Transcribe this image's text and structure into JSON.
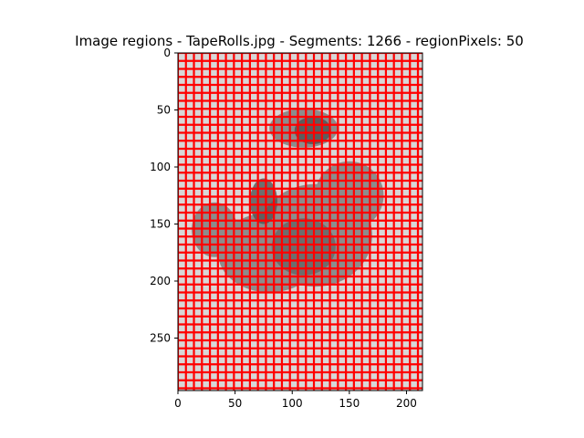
{
  "chart_data": {
    "type": "heatmap",
    "title": "Image regions - TapeRolls.jpg - Segments: 1266 - regionPixels: 50",
    "xlabel": "",
    "ylabel": "",
    "x_ticks": [
      0,
      50,
      100,
      150,
      200
    ],
    "y_ticks": [
      0,
      50,
      100,
      150,
      200,
      250
    ],
    "xlim": [
      0,
      214
    ],
    "ylim": [
      0,
      296
    ],
    "y_inverted": true,
    "grid": false,
    "image": {
      "description_source": "grayscale photo of two tape rolls",
      "background_color": "#d7d7d7",
      "object_color": "#8c8c8c",
      "dark_color": "#545454"
    },
    "segmentation": {
      "boundary_color": "#ff0000",
      "cell_size": 7,
      "segments": 1266
    }
  }
}
